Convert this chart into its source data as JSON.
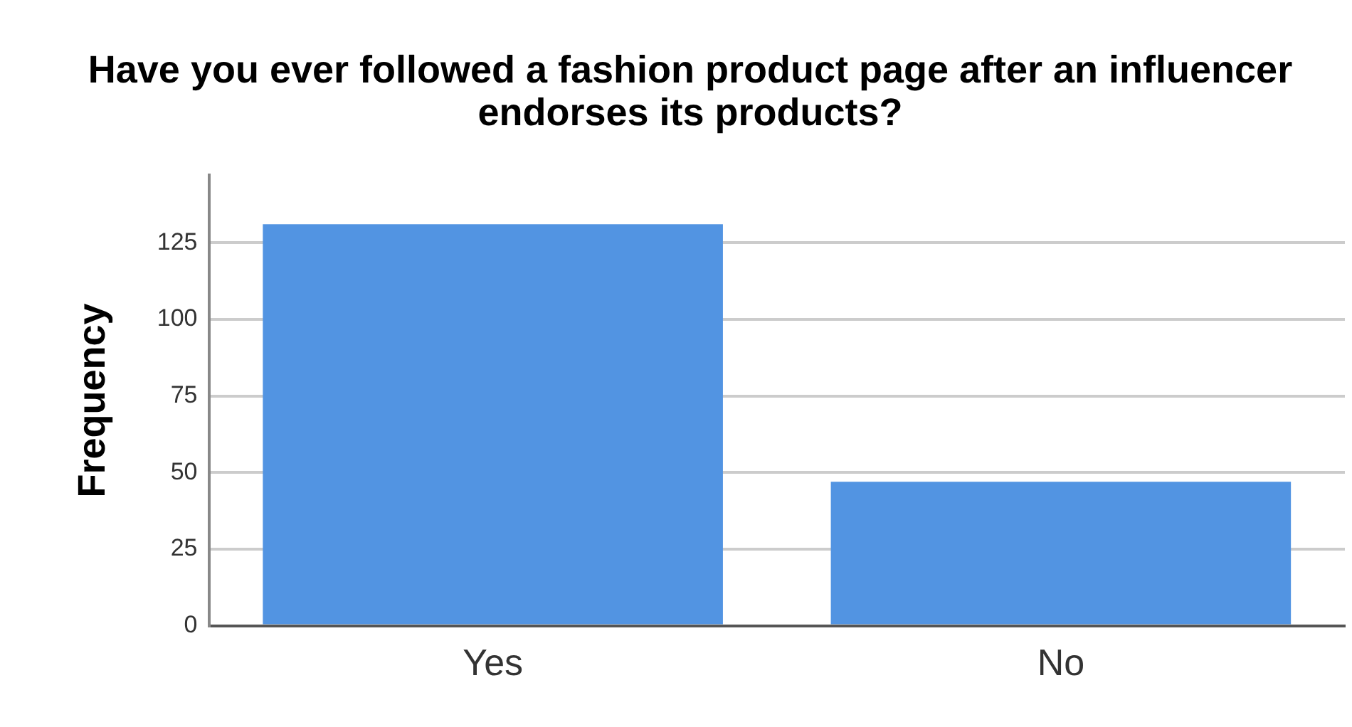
{
  "chart_data": {
    "type": "bar",
    "title": "Have you ever followed a fashion product page after an influencer endorses its products?",
    "ylabel": "Frequency",
    "categories": [
      "Yes",
      "No"
    ],
    "values": [
      131,
      47
    ],
    "color": "#5294e2",
    "ylim": [
      0,
      147
    ],
    "yticks": [
      0,
      25,
      50,
      75,
      100,
      125
    ],
    "grid": "y"
  }
}
